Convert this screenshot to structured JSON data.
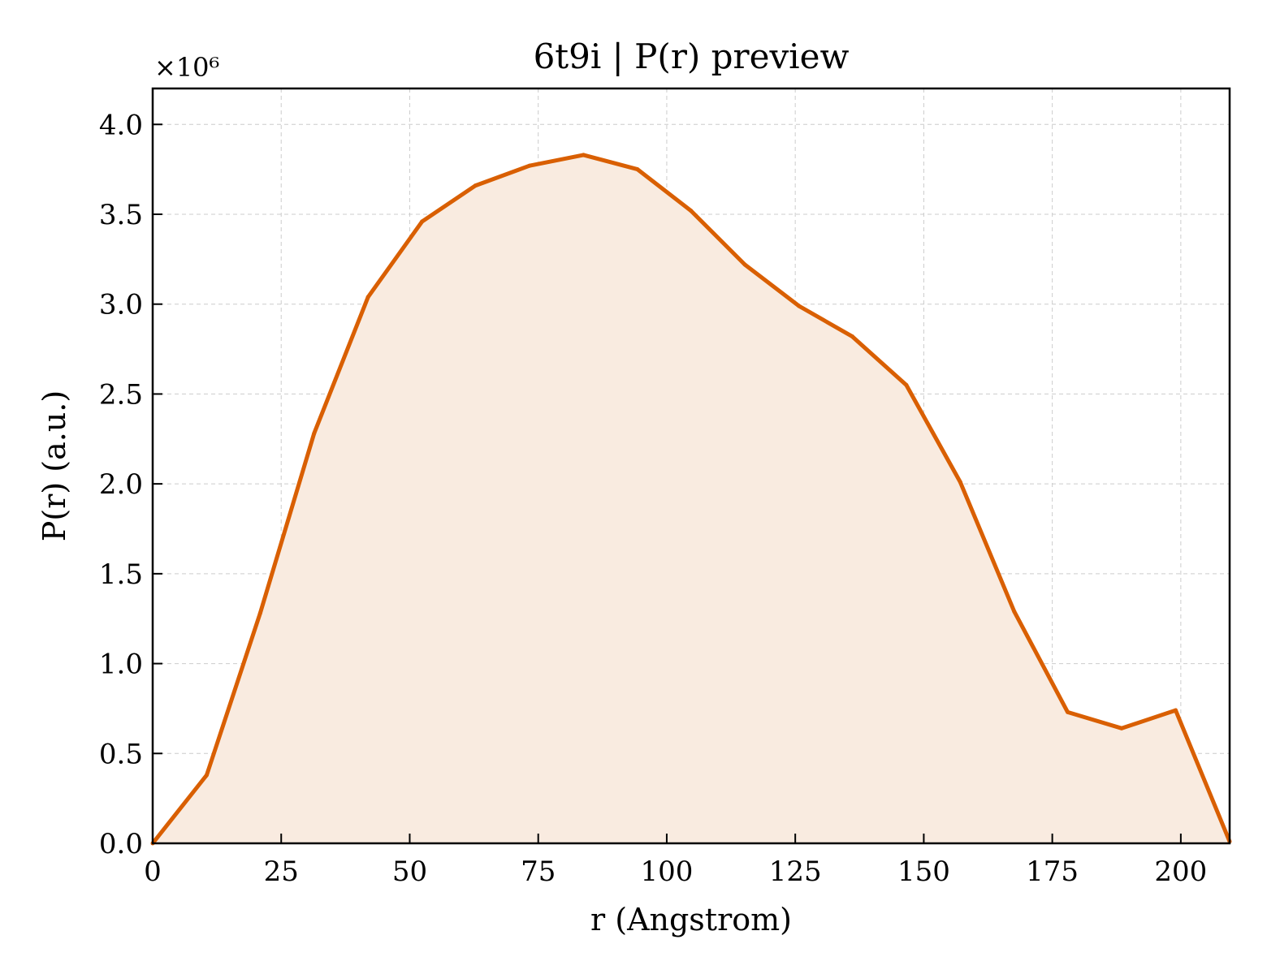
{
  "chart_data": {
    "type": "area",
    "title": "6t9i | P(r) preview",
    "xlabel": "r (Angstrom)",
    "ylabel": "P(r) (a.u.)",
    "y_offset_label": "×10⁶",
    "xlim": [
      0,
      209.5
    ],
    "ylim": [
      0,
      4.2
    ],
    "y_scale": 1000000,
    "xticks": [
      0,
      25,
      50,
      75,
      100,
      125,
      150,
      175,
      200
    ],
    "yticks": [
      0.0,
      0.5,
      1.0,
      1.5,
      2.0,
      2.5,
      3.0,
      3.5,
      4.0
    ],
    "ytick_labels": [
      "0.0",
      "0.5",
      "1.0",
      "1.5",
      "2.0",
      "2.5",
      "3.0",
      "3.5",
      "4.0"
    ],
    "grid": true,
    "line_color": "#d95f02",
    "fill_color": "#f9ebe0",
    "series": [
      {
        "x": [
          0,
          10.5,
          20.9,
          31.4,
          41.9,
          52.4,
          62.8,
          73.3,
          83.8,
          94.3,
          104.7,
          115.2,
          125.7,
          136.1,
          146.6,
          157.1,
          167.6,
          178.0,
          188.5,
          199.0,
          209.5
        ],
        "y": [
          0.0,
          0.38,
          1.28,
          2.28,
          3.04,
          3.46,
          3.66,
          3.77,
          3.83,
          3.75,
          3.52,
          3.22,
          2.99,
          2.82,
          2.55,
          2.01,
          1.29,
          0.73,
          0.64,
          0.74,
          0.01
        ]
      }
    ]
  }
}
